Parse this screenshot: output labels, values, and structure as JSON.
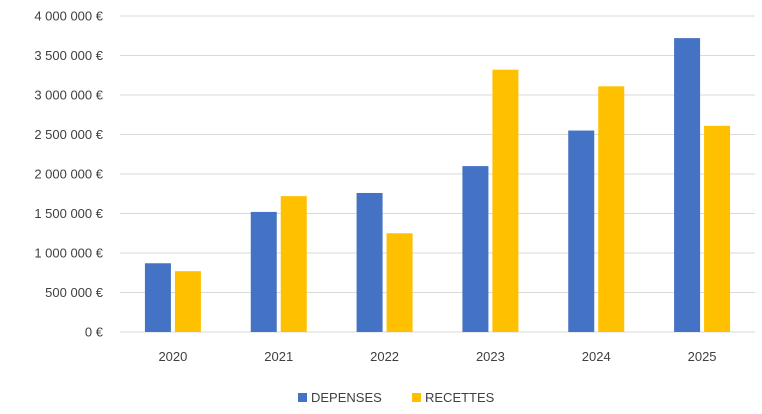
{
  "chart_data": {
    "type": "bar",
    "categories": [
      "2020",
      "2021",
      "2022",
      "2023",
      "2024",
      "2025"
    ],
    "series": [
      {
        "name": "DEPENSES",
        "color": "#4472C4",
        "values": [
          870000,
          1520000,
          1760000,
          2100000,
          2550000,
          3720000
        ]
      },
      {
        "name": "RECETTES",
        "color": "#FFC000",
        "values": [
          770000,
          1720000,
          1250000,
          3320000,
          3110000,
          2610000
        ]
      }
    ],
    "ylim": [
      0,
      4000000
    ],
    "yticks": [
      0,
      500000,
      1000000,
      1500000,
      2000000,
      2500000,
      3000000,
      3500000,
      4000000
    ],
    "ytick_labels": [
      "0 €",
      "500 000 €",
      "1 000 000 €",
      "1 500 000 €",
      "2 000 000 €",
      "2 500 000 €",
      "3 000 000 €",
      "3 500 000 €",
      "4 000 000 €"
    ],
    "grid": true,
    "gridline_color": "#d9d9d9",
    "legend_position": "bottom"
  }
}
